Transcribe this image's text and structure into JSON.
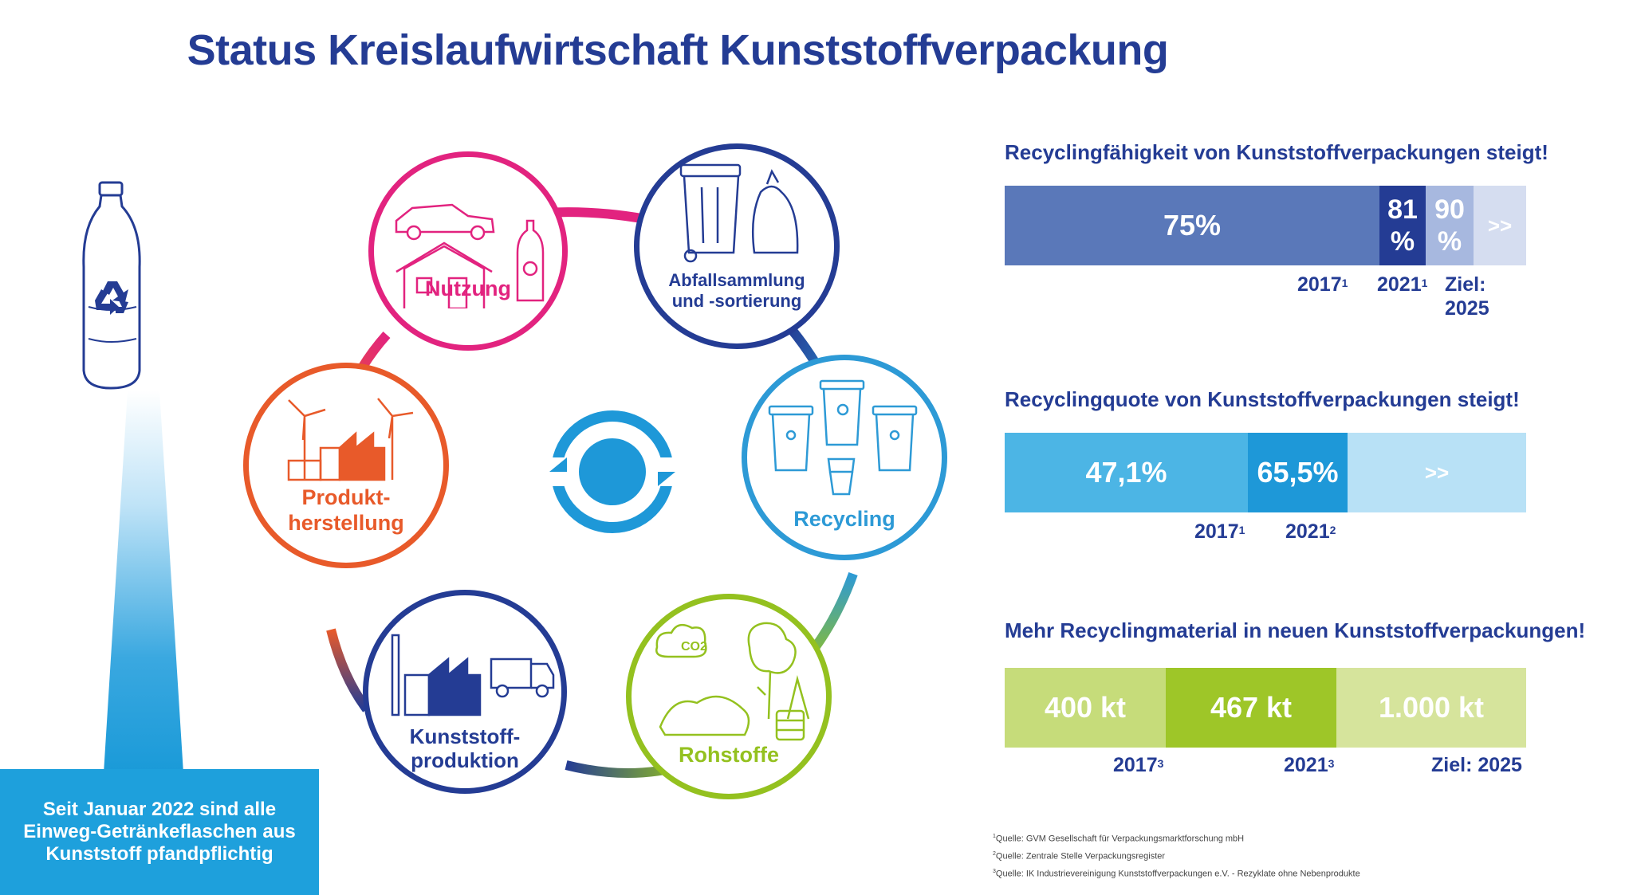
{
  "title": "Status Kreislaufwirtschaft Kunststoffverpackung",
  "notice": [
    "Seit Januar 2022 sind alle",
    "Einweg-Getränkeflaschen aus",
    "Kunststoff pfandpflichtig"
  ],
  "cycle": {
    "nodes": [
      {
        "label1": "Nutzung",
        "label2": "",
        "color": "#e2237f"
      },
      {
        "label1": "Abfallsammlung",
        "label2": "und -sortierung",
        "color": "#243c94"
      },
      {
        "label1": "Recycling",
        "label2": "",
        "color": "#2d9ad6"
      },
      {
        "label1": "Rohstoffe",
        "label2": "",
        "color": "#94c11f"
      },
      {
        "label1": "Kunststoff-",
        "label2": "produktion",
        "color": "#243c94"
      },
      {
        "label1": "Produkt-",
        "label2": "herstellung",
        "color": "#e85a2a"
      }
    ],
    "co2_label": "CO2"
  },
  "chart_data": [
    {
      "type": "bar",
      "title": "Recyclingfähigkeit von Kunststoffverpackungen steigt!",
      "segments": [
        {
          "label": "75%",
          "value": 75,
          "color": "#5a78b9"
        },
        {
          "label": "81 %",
          "value": 81,
          "color": "#243c94"
        },
        {
          "label": "90 %",
          "value": 90,
          "color": "#a7b8df"
        },
        {
          "label": ">>",
          "value": null,
          "color": "#d5ddf0"
        }
      ],
      "ticks": [
        {
          "text": "2017",
          "sup": "1"
        },
        {
          "text": "2021",
          "sup": "1"
        },
        {
          "text": "Ziel:",
          "text2": "2025",
          "sup": ""
        }
      ],
      "unit": "%"
    },
    {
      "type": "bar",
      "title": "Recyclingquote von Kunststoffverpackungen steigt!",
      "segments": [
        {
          "label": "47,1%",
          "value": 47.1,
          "color": "#4cb5e5"
        },
        {
          "label": "65,5%",
          "value": 65.5,
          "color": "#1e98d8"
        },
        {
          "label": ">>",
          "value": null,
          "color": "#b8e1f6"
        }
      ],
      "ticks": [
        {
          "text": "2017",
          "sup": "1"
        },
        {
          "text": "2021",
          "sup": "2"
        }
      ],
      "unit": "%"
    },
    {
      "type": "bar",
      "title": "Mehr Recyclingmaterial in neuen Kunststoffverpackungen!",
      "segments": [
        {
          "label": "400 kt",
          "value": 400,
          "color": "#c6dc7a"
        },
        {
          "label": "467 kt",
          "value": 467,
          "color": "#9ec628"
        },
        {
          "label": "1.000 kt",
          "value": 1000,
          "color": "#d6e49c"
        }
      ],
      "ticks": [
        {
          "text": "2017",
          "sup": "3"
        },
        {
          "text": "2021",
          "sup": "3"
        },
        {
          "text": "Ziel: 2025",
          "sup": ""
        }
      ],
      "unit": "kt"
    }
  ],
  "sources": [
    {
      "sup": "1",
      "text": "Quelle: GVM Gesellschaft für Verpackungsmarktforschung mbH"
    },
    {
      "sup": "2",
      "text": "Quelle: Zentrale Stelle Verpackungsregister"
    },
    {
      "sup": "3",
      "text": "Quelle: IK Industrievereinigung Kunststoffverpackungen e.V. - Rezyklate ohne Nebenprodukte"
    }
  ]
}
